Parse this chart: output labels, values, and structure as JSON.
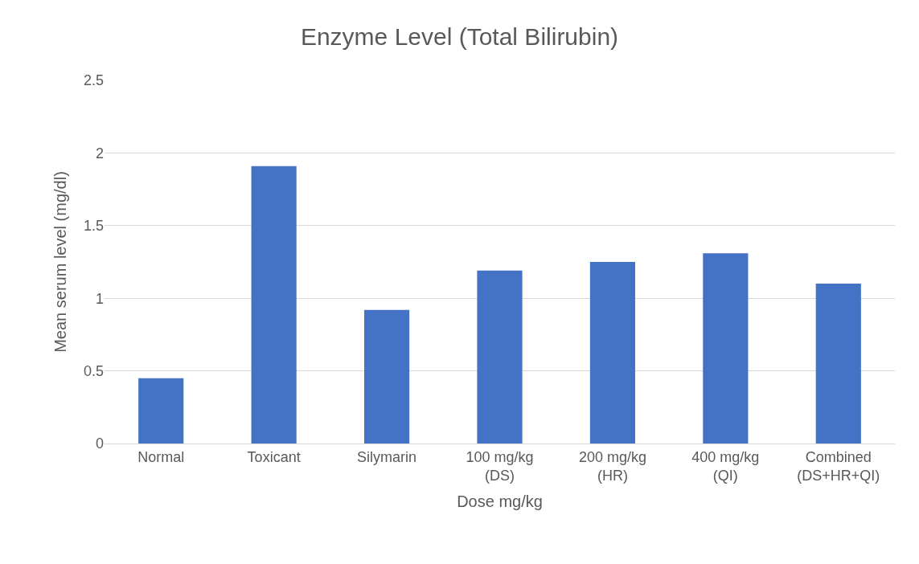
{
  "chart_data": {
    "type": "bar",
    "title": "Enzyme Level (Total Bilirubin)",
    "xlabel": "Dose mg/kg",
    "ylabel": "Mean serum level (mg/dl)",
    "categories": [
      "Normal",
      "Toxicant",
      "Silymarin",
      "100 mg/kg\n(DS)",
      "200 mg/kg\n(HR)",
      "400 mg/kg\n(QI)",
      "Combined\n(DS+HR+QI)"
    ],
    "values": [
      0.45,
      1.91,
      0.92,
      1.19,
      1.25,
      1.31,
      1.1
    ],
    "color": "#4472c4",
    "ylim": [
      0,
      2.5
    ],
    "yticks": [
      0,
      0.5,
      1,
      1.5,
      2,
      2.5
    ],
    "grid": "y"
  }
}
